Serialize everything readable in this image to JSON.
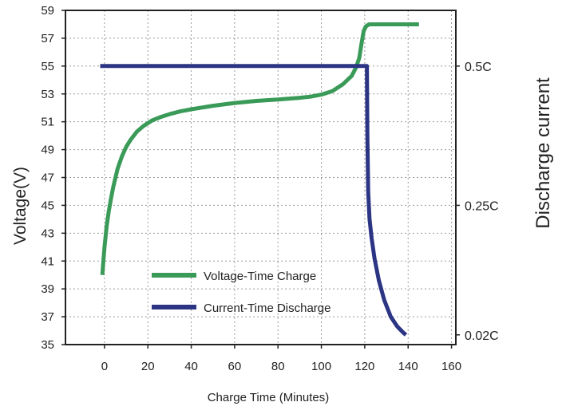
{
  "chart_data": {
    "type": "line",
    "xlabel": "Charge Time (Minutes)",
    "ylabel": "Voltage(V)",
    "y2label": "Discharge current",
    "xlim": [
      -18,
      162
    ],
    "ylim": [
      35,
      59
    ],
    "x_ticks": [
      0,
      20,
      40,
      60,
      80,
      100,
      120,
      140,
      160
    ],
    "x_tick_labels": [
      "0",
      "20",
      "40",
      "60",
      "80",
      "100",
      "120",
      "140",
      "160"
    ],
    "y_ticks": [
      35,
      37,
      39,
      41,
      43,
      45,
      47,
      49,
      51,
      53,
      55,
      57,
      59
    ],
    "y_tick_labels": [
      "35",
      "37",
      "39",
      "41",
      "43",
      "45",
      "47",
      "49",
      "51",
      "53",
      "55",
      "57",
      "59"
    ],
    "y2_ticks": [
      {
        "label": "0.5C",
        "y": 55
      },
      {
        "label": "0.25C",
        "y": 45
      },
      {
        "label": "0.02C",
        "y": 35.7
      }
    ],
    "grid": true,
    "legend_position": "bottom-center",
    "series": [
      {
        "name": "Voltage-Time Charge",
        "color": "#3a9a58",
        "axis": "left",
        "x": [
          -1,
          -0.5,
          0,
          1,
          2,
          3,
          4,
          6,
          8,
          10,
          12,
          15,
          18,
          22,
          26,
          30,
          35,
          40,
          50,
          60,
          70,
          80,
          90,
          95,
          100,
          105,
          110,
          114,
          116,
          117.5,
          118.5,
          119.5,
          120.5,
          122,
          125,
          135,
          145
        ],
        "y": [
          40.0,
          41.0,
          42.0,
          43.5,
          44.6,
          45.5,
          46.3,
          47.6,
          48.5,
          49.2,
          49.7,
          50.3,
          50.7,
          51.1,
          51.35,
          51.55,
          51.75,
          51.9,
          52.15,
          52.35,
          52.5,
          52.6,
          52.72,
          52.8,
          52.95,
          53.2,
          53.7,
          54.3,
          54.9,
          55.6,
          56.6,
          57.5,
          57.85,
          58.0,
          58.0,
          58.0,
          58.0
        ]
      },
      {
        "name": "Current-Time Discharge",
        "color": "#2b3584",
        "axis": "right",
        "x": [
          -2,
          30,
          60,
          90,
          121,
          121.2,
          121.6,
          122.2,
          123.2,
          124.5,
          126.5,
          129,
          132,
          135,
          137.5,
          139
        ],
        "y": [
          55,
          55,
          55,
          55,
          55,
          50,
          46,
          44,
          42.6,
          41.2,
          39.6,
          38.2,
          37.0,
          36.3,
          35.9,
          35.7
        ]
      }
    ]
  }
}
